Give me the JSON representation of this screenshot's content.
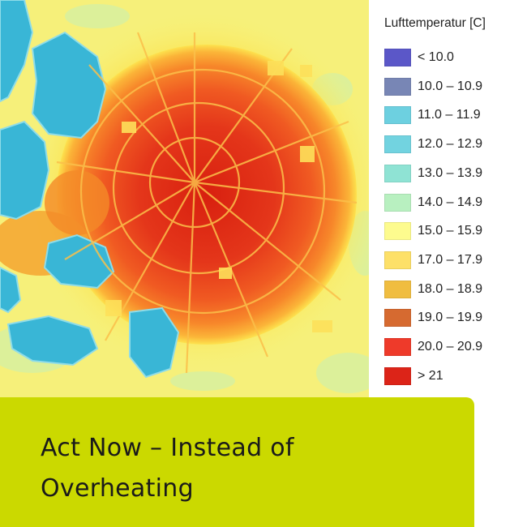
{
  "legend": {
    "title": "Lufttemperatur [C]",
    "items": [
      {
        "label": "< 10.0",
        "color": "#5b57c8"
      },
      {
        "label": "10.0 – 10.9",
        "color": "#7886b5"
      },
      {
        "label": "11.0 – 11.9",
        "color": "#6dd0e0"
      },
      {
        "label": "12.0 – 12.9",
        "color": "#72d3e0"
      },
      {
        "label": "13.0 – 13.9",
        "color": "#8fe3d4"
      },
      {
        "label": "14.0 – 14.9",
        "color": "#b8f0c0"
      },
      {
        "label": "15.0 – 15.9",
        "color": "#fdfb8e"
      },
      {
        "label": "17.0 – 17.9",
        "color": "#fde068"
      },
      {
        "label": "18.0 – 18.9",
        "color": "#f0bd40"
      },
      {
        "label": "19.0 – 19.9",
        "color": "#d66a30"
      },
      {
        "label": "20.0 – 20.9",
        "color": "#ee3a2a"
      },
      {
        "label": "> 21",
        "color": "#dc2418"
      }
    ]
  },
  "caption": {
    "line1": "Act Now – Instead of",
    "line2": "Overheating",
    "background": "#cbd900"
  }
}
